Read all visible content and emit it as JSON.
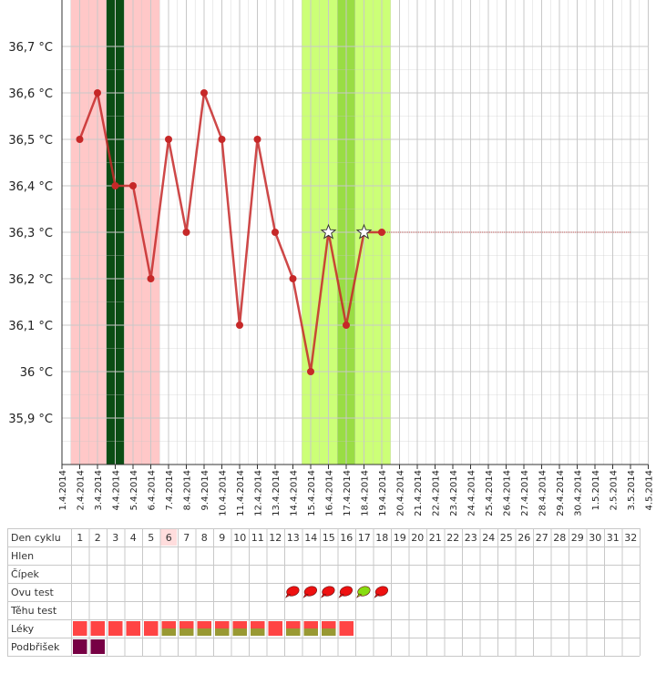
{
  "colors": {
    "line": "#c62828",
    "point": "#c62828",
    "period_band": "#ffc8c8",
    "period_dark": "#0b4d14",
    "fertile_band": "#ccff77",
    "ovulation_band": "#99dd44",
    "grid": "#c8c8c8",
    "forecast_line": "#c05050",
    "lek_red": "#ff4444",
    "lek_olive": "#999933",
    "podbrisek": "#770044",
    "ovu_red": "#ee1111",
    "ovu_green": "#88dd11",
    "highlight_cell": "#ffdddd"
  },
  "chart_data": {
    "type": "line",
    "title": "",
    "xlabel": "",
    "ylabel": "",
    "ylim": [
      35.8,
      36.8
    ],
    "y_ticks": [
      {
        "value": 35.9,
        "label": "35,9 °C"
      },
      {
        "value": 36.0,
        "label": "36 °C"
      },
      {
        "value": 36.1,
        "label": "36,1 °C"
      },
      {
        "value": 36.2,
        "label": "36,2 °C"
      },
      {
        "value": 36.3,
        "label": "36,3 °C"
      },
      {
        "value": 36.4,
        "label": "36,4 °C"
      },
      {
        "value": 36.5,
        "label": "36,5 °C"
      },
      {
        "value": 36.6,
        "label": "36,6 °C"
      },
      {
        "value": 36.7,
        "label": "36,7 °C"
      }
    ],
    "dates": [
      "1.4.2014",
      "2.4.2014",
      "3.4.2014",
      "4.4.2014",
      "5.4.2014",
      "6.4.2014",
      "7.4.2014",
      "8.4.2014",
      "9.4.2014",
      "10.4.2014",
      "11.4.2014",
      "12.4.2014",
      "13.4.2014",
      "14.4.2014",
      "15.4.2014",
      "16.4.2014",
      "17.4.2014",
      "18.4.2014",
      "19.4.2014",
      "20.4.2014",
      "21.4.2014",
      "22.4.2014",
      "23.4.2014",
      "24.4.2014",
      "25.4.2014",
      "26.4.2014",
      "27.4.2014",
      "28.4.2014",
      "29.4.2014",
      "30.4.2014",
      "1.5.2014",
      "2.5.2014",
      "3.5.2014",
      "4.5.2014"
    ],
    "series": [
      {
        "x": [
          "2.4.2014",
          "3.4.2014",
          "4.4.2014",
          "5.4.2014",
          "6.4.2014",
          "7.4.2014",
          "8.4.2014",
          "9.4.2014",
          "10.4.2014",
          "11.4.2014",
          "12.4.2014",
          "13.4.2014",
          "14.4.2014",
          "15.4.2014",
          "16.4.2014",
          "17.4.2014",
          "18.4.2014",
          "19.4.2014"
        ],
        "values": [
          36.5,
          36.6,
          36.4,
          36.4,
          36.2,
          36.5,
          36.3,
          36.6,
          36.5,
          36.1,
          36.5,
          36.3,
          36.2,
          36.0,
          36.3,
          36.1,
          36.3,
          36.3
        ],
        "star_markers": [
          "16.4.2014",
          "18.4.2014"
        ]
      }
    ],
    "forecast": {
      "from": "19.4.2014",
      "to": "3.5.2014",
      "value": 36.3
    },
    "bands": {
      "period": {
        "from": "1.4.2014",
        "to": "6.4.2014"
      },
      "period_dark": {
        "from": "3.4.2014",
        "to": "4.4.2014"
      },
      "fertile": {
        "from": "14.4.2014",
        "to": "19.4.2014"
      },
      "ovulation": {
        "from": "16.4.2014",
        "to": "17.4.2014"
      }
    },
    "grid": true
  },
  "table": {
    "rows": [
      "Den cyklu",
      "Hlen",
      "Čípek",
      "Ovu test",
      "Těhu test",
      "Léky",
      "Podbřišek"
    ],
    "days": [
      "1",
      "2",
      "3",
      "4",
      "5",
      "6",
      "7",
      "8",
      "9",
      "10",
      "11",
      "12",
      "13",
      "14",
      "15",
      "16",
      "17",
      "18",
      "19",
      "20",
      "21",
      "22",
      "23",
      "24",
      "25",
      "26",
      "27",
      "28",
      "29",
      "30",
      "31",
      "32"
    ],
    "highlight_day": "6",
    "ovu_test": [
      {
        "day": "13",
        "result": "negative"
      },
      {
        "day": "14",
        "result": "negative"
      },
      {
        "day": "15",
        "result": "negative"
      },
      {
        "day": "16",
        "result": "negative"
      },
      {
        "day": "17",
        "result": "positive"
      },
      {
        "day": "18",
        "result": "negative"
      }
    ],
    "leky": [
      {
        "day": "1",
        "type": "red"
      },
      {
        "day": "2",
        "type": "red"
      },
      {
        "day": "3",
        "type": "red"
      },
      {
        "day": "4",
        "type": "red"
      },
      {
        "day": "5",
        "type": "red"
      },
      {
        "day": "6",
        "type": "red-olive"
      },
      {
        "day": "7",
        "type": "red-olive"
      },
      {
        "day": "8",
        "type": "red-olive"
      },
      {
        "day": "9",
        "type": "red-olive"
      },
      {
        "day": "10",
        "type": "red-olive"
      },
      {
        "day": "11",
        "type": "red-olive"
      },
      {
        "day": "12",
        "type": "red"
      },
      {
        "day": "13",
        "type": "red-olive"
      },
      {
        "day": "14",
        "type": "red-olive"
      },
      {
        "day": "15",
        "type": "red-olive"
      },
      {
        "day": "16",
        "type": "red"
      }
    ],
    "podbrisek": [
      "1",
      "2"
    ]
  }
}
